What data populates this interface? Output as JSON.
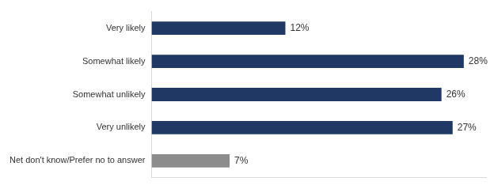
{
  "chart_data": {
    "type": "bar",
    "orientation": "horizontal",
    "categories": [
      "Very likely",
      "Somewhat likely",
      "Somewhat unlikely",
      "Very unlikely",
      "Net don't know/Prefer no to answer"
    ],
    "values": [
      12,
      28,
      26,
      27,
      7
    ],
    "value_labels": [
      "12%",
      "28%",
      "26%",
      "27%",
      "7%"
    ],
    "colors": [
      "#1f3864",
      "#1f3864",
      "#1f3864",
      "#1f3864",
      "#8c8c8c"
    ],
    "xlim": [
      0,
      30
    ],
    "data_labels": true,
    "tick_labels": "y",
    "grid": false
  }
}
